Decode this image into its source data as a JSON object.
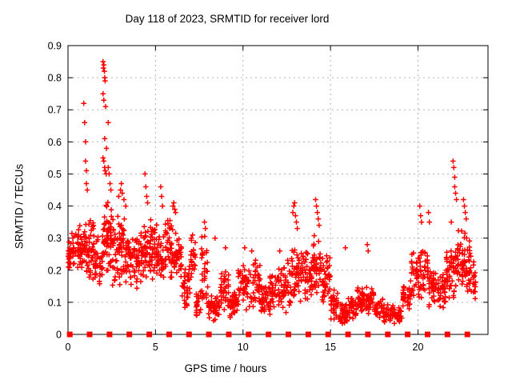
{
  "chart_data": {
    "type": "scatter",
    "title": "Day 118 of 2023, SRMTID for receiver lord",
    "xlabel": "GPS time / hours",
    "ylabel": "SRMTID / TECUs",
    "xlim": [
      0,
      24
    ],
    "ylim": [
      0,
      0.9
    ],
    "xticks": [
      0,
      5,
      10,
      15,
      20
    ],
    "yticks": [
      0,
      0.1,
      0.2,
      0.3,
      0.4,
      0.5,
      0.6,
      0.7,
      0.8,
      0.9
    ],
    "grid": true,
    "legend": "none",
    "marker": "plus",
    "marker_color": "#ff0000",
    "grid_color": "#b3b3b3",
    "border_color": "#000000",
    "render_seed": 118,
    "density_bands": [
      [
        0.0,
        0.5,
        0.2,
        0.32,
        40
      ],
      [
        0.5,
        1.0,
        0.18,
        0.34,
        45
      ],
      [
        1.0,
        1.5,
        0.17,
        0.36,
        45
      ],
      [
        1.5,
        2.0,
        0.13,
        0.33,
        40
      ],
      [
        2.0,
        2.5,
        0.18,
        0.42,
        55
      ],
      [
        2.5,
        3.0,
        0.12,
        0.38,
        45
      ],
      [
        3.0,
        3.5,
        0.15,
        0.38,
        45
      ],
      [
        3.5,
        4.0,
        0.14,
        0.33,
        40
      ],
      [
        4.0,
        4.5,
        0.13,
        0.35,
        45
      ],
      [
        4.5,
        5.0,
        0.15,
        0.37,
        45
      ],
      [
        5.0,
        5.5,
        0.14,
        0.35,
        40
      ],
      [
        5.5,
        6.0,
        0.16,
        0.36,
        40
      ],
      [
        6.0,
        6.5,
        0.15,
        0.32,
        40
      ],
      [
        6.5,
        7.0,
        0.08,
        0.22,
        35
      ],
      [
        7.0,
        7.3,
        0.14,
        0.33,
        25
      ],
      [
        7.3,
        7.6,
        0.05,
        0.15,
        20
      ],
      [
        7.6,
        8.0,
        0.08,
        0.32,
        30
      ],
      [
        8.0,
        8.7,
        0.04,
        0.13,
        45
      ],
      [
        8.7,
        9.2,
        0.07,
        0.2,
        35
      ],
      [
        9.2,
        9.7,
        0.05,
        0.14,
        35
      ],
      [
        9.7,
        10.4,
        0.06,
        0.24,
        45
      ],
      [
        10.4,
        11.0,
        0.08,
        0.24,
        40
      ],
      [
        11.0,
        11.5,
        0.06,
        0.18,
        35
      ],
      [
        11.5,
        12.0,
        0.05,
        0.2,
        35
      ],
      [
        12.0,
        12.5,
        0.06,
        0.22,
        40
      ],
      [
        12.5,
        13.0,
        0.08,
        0.28,
        35
      ],
      [
        13.0,
        13.5,
        0.1,
        0.3,
        35
      ],
      [
        13.5,
        14.0,
        0.1,
        0.26,
        40
      ],
      [
        14.0,
        14.5,
        0.12,
        0.32,
        40
      ],
      [
        14.5,
        15.0,
        0.08,
        0.26,
        40
      ],
      [
        15.0,
        15.5,
        0.04,
        0.14,
        35
      ],
      [
        15.5,
        16.0,
        0.03,
        0.1,
        35
      ],
      [
        16.0,
        16.5,
        0.04,
        0.12,
        35
      ],
      [
        16.5,
        17.0,
        0.06,
        0.16,
        35
      ],
      [
        17.0,
        17.5,
        0.05,
        0.15,
        30
      ],
      [
        17.5,
        18.0,
        0.04,
        0.12,
        30
      ],
      [
        18.0,
        18.6,
        0.03,
        0.1,
        40
      ],
      [
        18.6,
        19.1,
        0.03,
        0.09,
        35
      ],
      [
        19.1,
        19.6,
        0.06,
        0.18,
        35
      ],
      [
        19.6,
        20.1,
        0.1,
        0.28,
        35
      ],
      [
        20.1,
        20.6,
        0.1,
        0.3,
        35
      ],
      [
        20.6,
        21.1,
        0.08,
        0.22,
        35
      ],
      [
        21.1,
        21.6,
        0.08,
        0.2,
        35
      ],
      [
        21.6,
        22.1,
        0.1,
        0.3,
        40
      ],
      [
        22.1,
        22.6,
        0.12,
        0.33,
        40
      ],
      [
        22.6,
        23.0,
        0.12,
        0.32,
        35
      ],
      [
        23.0,
        23.3,
        0.1,
        0.25,
        20
      ]
    ],
    "outlier_points": [
      [
        0.9,
        0.72
      ],
      [
        0.95,
        0.66
      ],
      [
        1.0,
        0.6
      ],
      [
        1.0,
        0.54
      ],
      [
        1.05,
        0.51
      ],
      [
        1.05,
        0.47
      ],
      [
        1.1,
        0.45
      ],
      [
        2.0,
        0.85
      ],
      [
        2.02,
        0.83
      ],
      [
        2.05,
        0.84
      ],
      [
        2.08,
        0.82
      ],
      [
        2.1,
        0.8
      ],
      [
        2.12,
        0.79
      ],
      [
        2.0,
        0.75
      ],
      [
        2.05,
        0.73
      ],
      [
        2.15,
        0.71
      ],
      [
        2.3,
        0.66
      ],
      [
        2.1,
        0.61
      ],
      [
        2.2,
        0.58
      ],
      [
        2.0,
        0.55
      ],
      [
        2.05,
        0.54
      ],
      [
        2.1,
        0.52
      ],
      [
        2.12,
        0.51
      ],
      [
        2.18,
        0.5
      ],
      [
        2.3,
        0.52
      ],
      [
        2.35,
        0.5
      ],
      [
        2.4,
        0.47
      ],
      [
        2.45,
        0.45
      ],
      [
        2.9,
        0.43
      ],
      [
        3.0,
        0.45
      ],
      [
        3.05,
        0.47
      ],
      [
        3.1,
        0.44
      ],
      [
        3.2,
        0.42
      ],
      [
        3.3,
        0.4
      ],
      [
        4.4,
        0.5
      ],
      [
        4.45,
        0.46
      ],
      [
        4.5,
        0.43
      ],
      [
        4.55,
        0.41
      ],
      [
        5.3,
        0.46
      ],
      [
        5.35,
        0.43
      ],
      [
        5.4,
        0.4
      ],
      [
        6.0,
        0.4
      ],
      [
        6.05,
        0.41
      ],
      [
        6.1,
        0.39
      ],
      [
        6.15,
        0.38
      ],
      [
        7.8,
        0.35
      ],
      [
        7.85,
        0.33
      ],
      [
        8.4,
        0.3
      ],
      [
        9.0,
        0.27
      ],
      [
        10.1,
        0.27
      ],
      [
        10.5,
        0.26
      ],
      [
        12.1,
        0.26
      ],
      [
        12.85,
        0.38
      ],
      [
        12.9,
        0.4
      ],
      [
        12.95,
        0.41
      ],
      [
        13.0,
        0.37
      ],
      [
        13.05,
        0.35
      ],
      [
        13.1,
        0.33
      ],
      [
        14.15,
        0.42
      ],
      [
        14.2,
        0.4
      ],
      [
        14.25,
        0.38
      ],
      [
        14.3,
        0.36
      ],
      [
        14.35,
        0.34
      ],
      [
        15.85,
        0.27
      ],
      [
        17.1,
        0.28
      ],
      [
        17.15,
        0.26
      ],
      [
        20.1,
        0.4
      ],
      [
        20.15,
        0.37
      ],
      [
        20.2,
        0.35
      ],
      [
        20.6,
        0.38
      ],
      [
        20.65,
        0.35
      ],
      [
        21.9,
        0.35
      ],
      [
        22.0,
        0.54
      ],
      [
        22.05,
        0.52
      ],
      [
        22.1,
        0.49
      ],
      [
        22.1,
        0.46
      ],
      [
        22.15,
        0.44
      ],
      [
        22.2,
        0.42
      ],
      [
        22.6,
        0.42
      ],
      [
        22.65,
        0.4
      ],
      [
        22.7,
        0.38
      ],
      [
        22.75,
        0.36
      ],
      [
        0.1,
        0.0
      ],
      [
        0.18,
        0.0
      ]
    ],
    "zero_square_markers": {
      "start_hour": 0.1,
      "step_hours": 1.136,
      "count": 21,
      "value": 0
    }
  }
}
